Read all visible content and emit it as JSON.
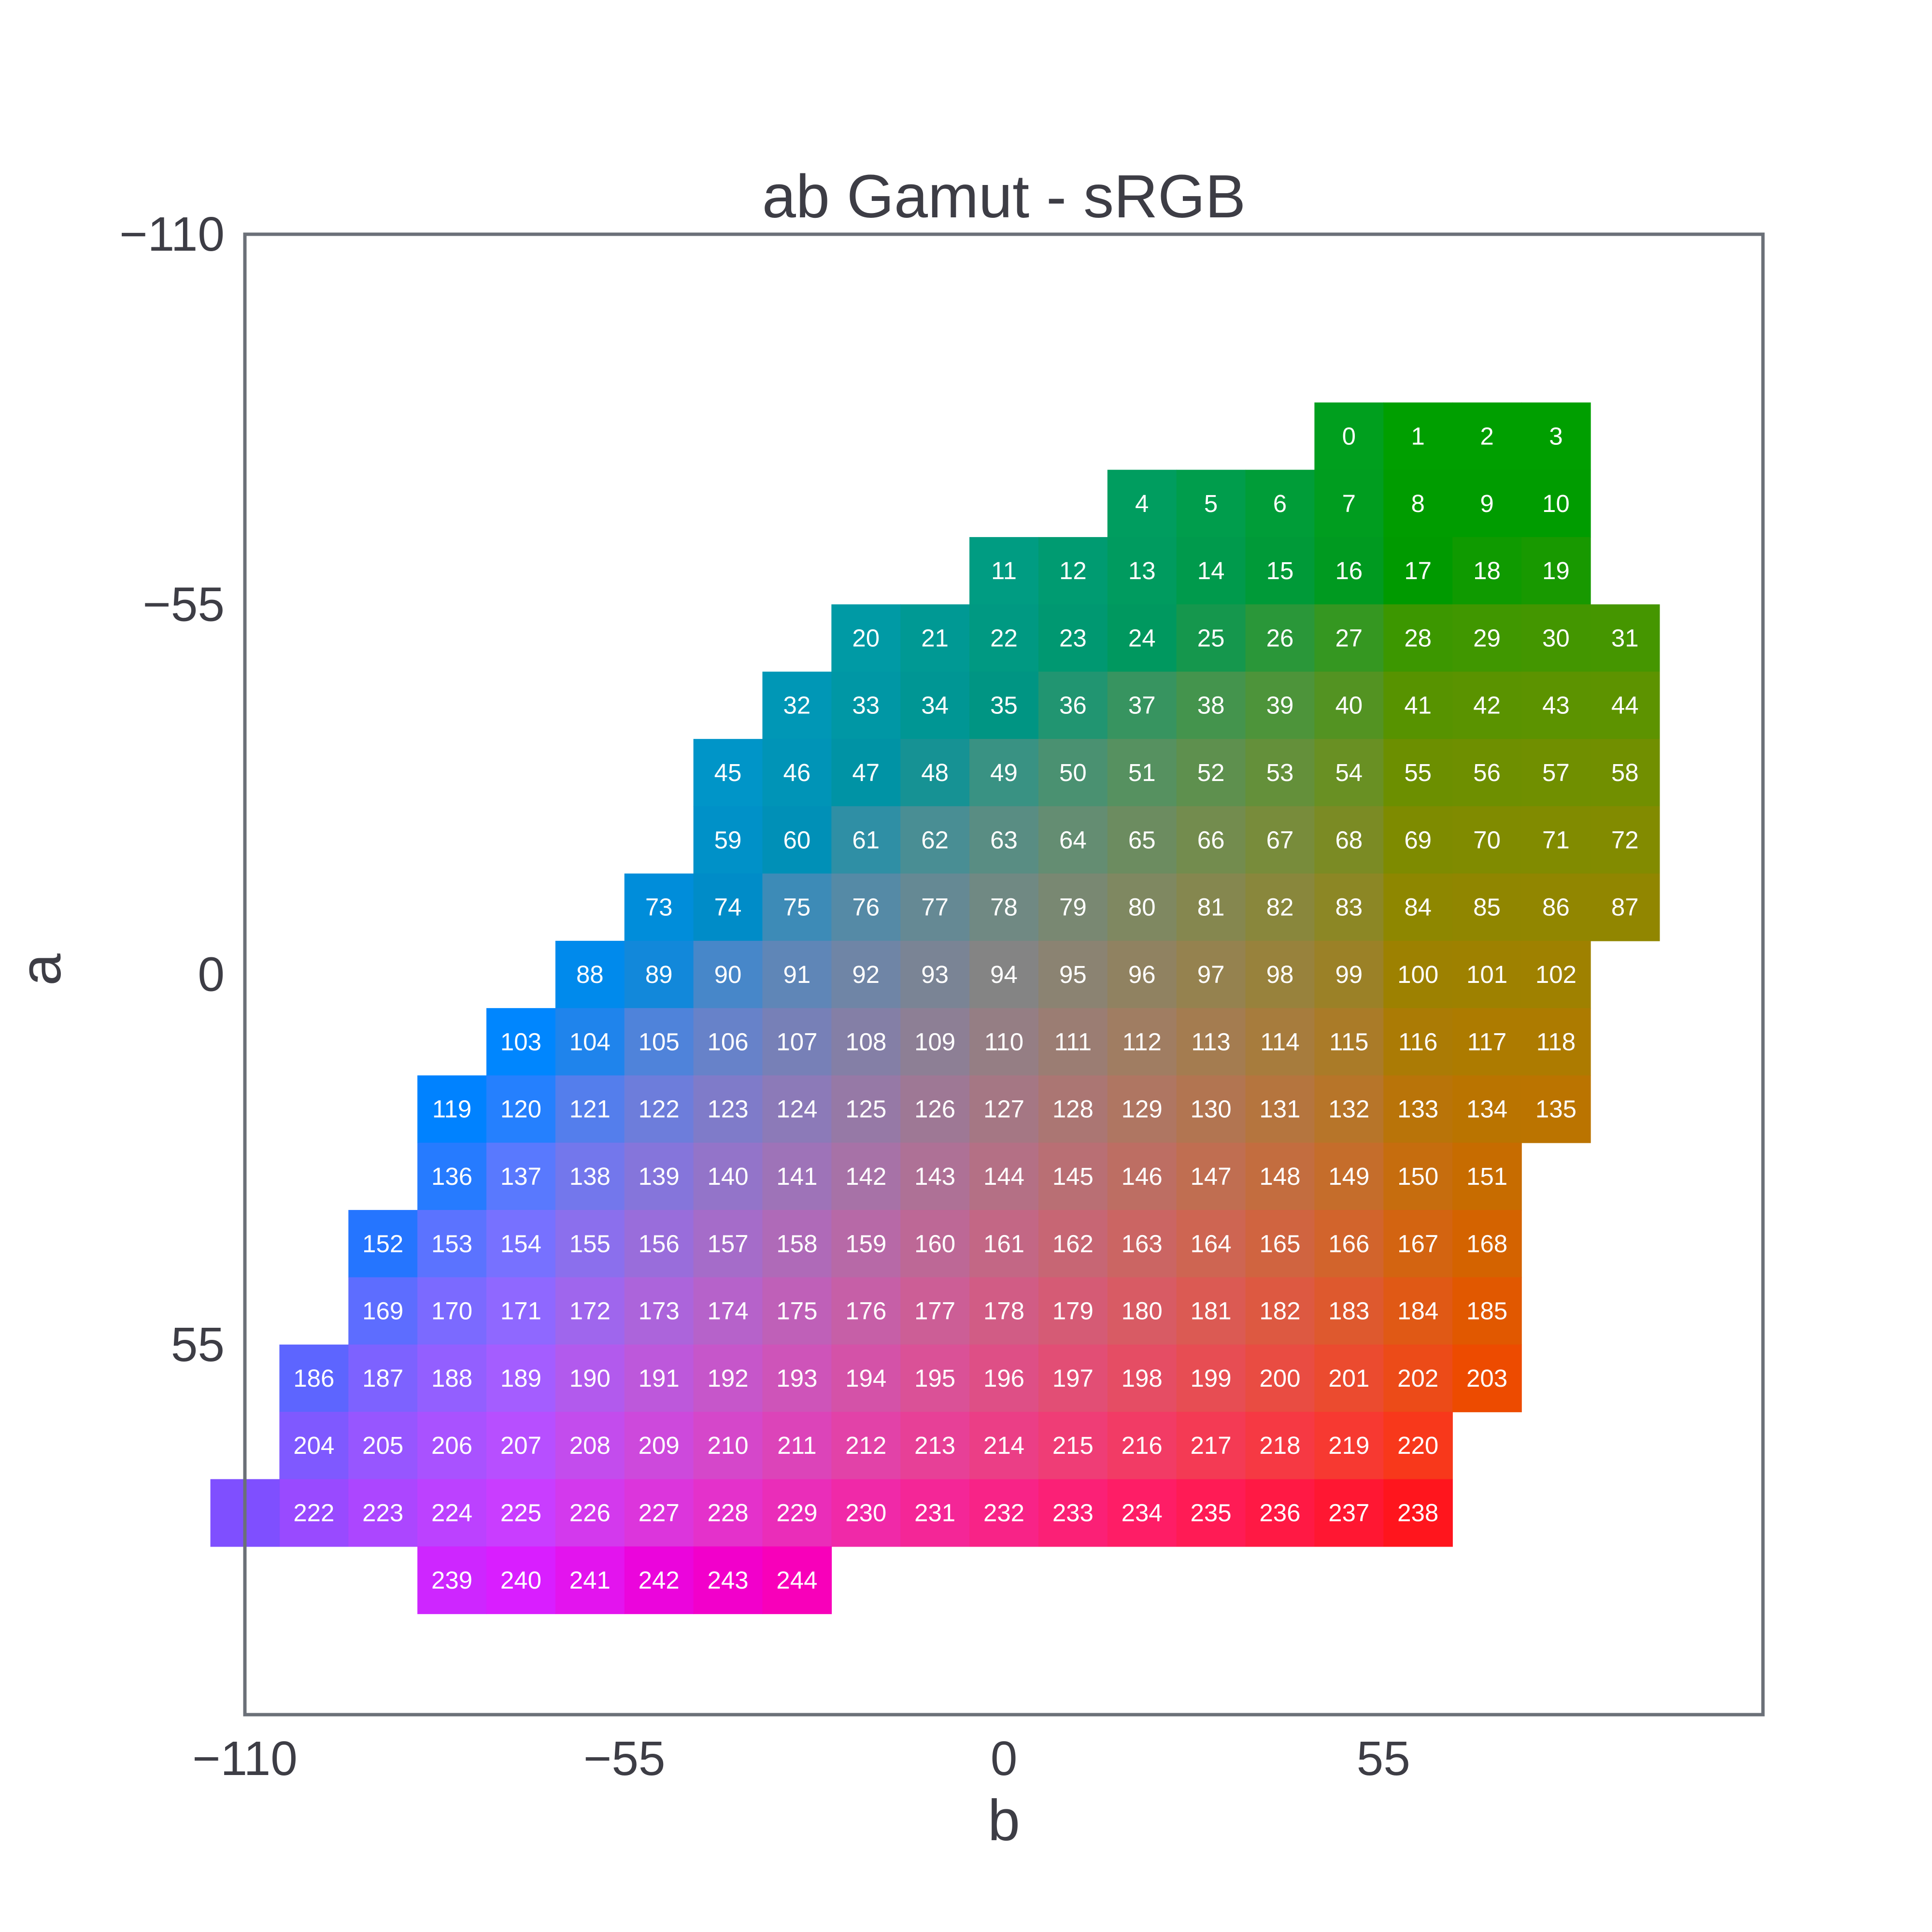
{
  "chart_data": {
    "type": "heatmap",
    "title": "ab Gamut - sRGB",
    "xlabel": "b",
    "ylabel": "a",
    "xlim": [
      -110,
      110
    ],
    "ylim": [
      -110,
      110
    ],
    "y_inverted": true,
    "grid": false,
    "x_ticks": [
      -110,
      -55,
      0,
      55
    ],
    "y_ticks": [
      -110,
      -55,
      0,
      55
    ],
    "x_tick_labels": [
      "−110",
      "−55",
      "0",
      "55"
    ],
    "y_tick_labels": [
      "−110",
      "−55",
      "0",
      "55"
    ],
    "cell_size": 10,
    "rows": [
      {
        "a": -80,
        "first_b": 50,
        "first_index": 0,
        "count": 4
      },
      {
        "a": -70,
        "first_b": 20,
        "first_index": 4,
        "count": 7
      },
      {
        "a": -60,
        "first_b": 0,
        "first_index": 11,
        "count": 9
      },
      {
        "a": -50,
        "first_b": -20,
        "first_index": 20,
        "count": 12
      },
      {
        "a": -40,
        "first_b": -30,
        "first_index": 32,
        "count": 13
      },
      {
        "a": -30,
        "first_b": -40,
        "first_index": 45,
        "count": 14
      },
      {
        "a": -20,
        "first_b": -40,
        "first_index": 59,
        "count": 14
      },
      {
        "a": -10,
        "first_b": -50,
        "first_index": 73,
        "count": 15
      },
      {
        "a": 0,
        "first_b": -60,
        "first_index": 88,
        "count": 15
      },
      {
        "a": 10,
        "first_b": -70,
        "first_index": 103,
        "count": 16
      },
      {
        "a": 20,
        "first_b": -80,
        "first_index": 119,
        "count": 17
      },
      {
        "a": 30,
        "first_b": -80,
        "first_index": 136,
        "count": 16
      },
      {
        "a": 40,
        "first_b": -90,
        "first_index": 152,
        "count": 17
      },
      {
        "a": 50,
        "first_b": -90,
        "first_index": 169,
        "count": 17
      },
      {
        "a": 60,
        "first_b": -100,
        "first_index": 186,
        "count": 18
      },
      {
        "a": 70,
        "first_b": -100,
        "first_index": 204,
        "count": 17
      },
      {
        "a": 80,
        "first_b": -100,
        "first_index": 222,
        "count": 17
      },
      {
        "a": 90,
        "first_b": -80,
        "first_index": 239,
        "count": 6
      }
    ],
    "unlabeled_cells": [
      {
        "a": 80,
        "b": -110
      }
    ]
  }
}
